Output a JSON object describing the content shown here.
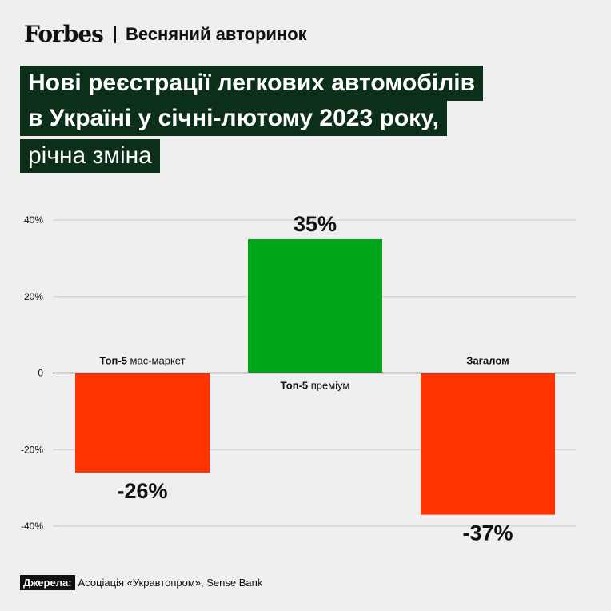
{
  "header": {
    "brand": "Forbes",
    "section": "Весняний авторинок"
  },
  "title": {
    "line1": "Нові реєстрації легкових автомобілів",
    "line2": "в Україні у січні-лютому 2023 року,",
    "line3": "річна зміна"
  },
  "chart_data": {
    "type": "bar",
    "title": "Нові реєстрації легкових автомобілів в Україні у січні-лютому 2023 року, річна зміна",
    "xlabel": "",
    "ylabel": "",
    "categories": [
      "Топ-5 мас-маркет",
      "Топ-5 преміум",
      "Загалом"
    ],
    "category_labels": [
      {
        "bold": "Топ-5",
        "rest": " мас-маркет"
      },
      {
        "bold": "Топ-5",
        "rest": " преміум"
      },
      {
        "bold": "Загалом",
        "rest": ""
      }
    ],
    "values": [
      -26,
      35,
      -37
    ],
    "value_labels": [
      "-26%",
      "35%",
      "-37%"
    ],
    "ylim": [
      -40,
      40
    ],
    "yticks": [
      40,
      20,
      0,
      -20,
      -40
    ],
    "ytick_labels": [
      "40%",
      "20%",
      "0",
      "-20%",
      "-40%"
    ],
    "grid": true,
    "colors": {
      "positive": "#00a61a",
      "negative": "#ff3300",
      "grid": "#c8c8c8",
      "zero": "#111111"
    }
  },
  "source": {
    "key": "Джерела:",
    "value": "Асоціація «Укравтопром», Sense Bank"
  },
  "colors": {
    "background": "#efefef",
    "title_bg": "#0c2f1a",
    "title_text": "#ffffff"
  }
}
